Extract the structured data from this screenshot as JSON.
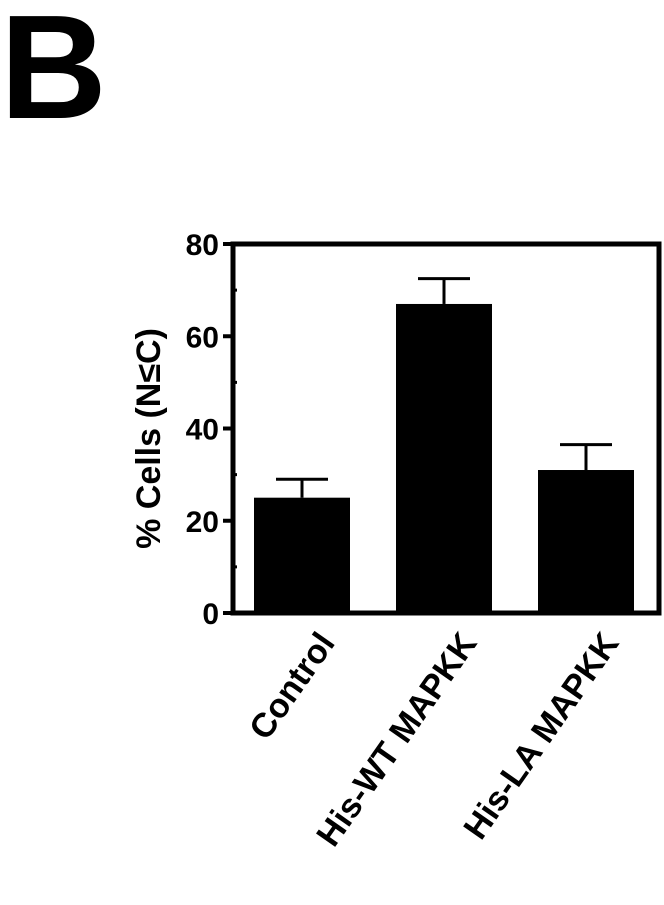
{
  "panel_label": "B",
  "chart_data": {
    "type": "bar",
    "categories": [
      "Control",
      "His-WT MAPKK",
      "His-LA MAPKK"
    ],
    "values": [
      25,
      67,
      31
    ],
    "errors": [
      4,
      5.5,
      5.5
    ],
    "ylabel": "% Cells (N≤C)",
    "xlabel": "",
    "ylim": [
      0,
      80
    ],
    "yticks": [
      0,
      20,
      40,
      60,
      80
    ],
    "grid": false,
    "bar_color": "#000000"
  }
}
